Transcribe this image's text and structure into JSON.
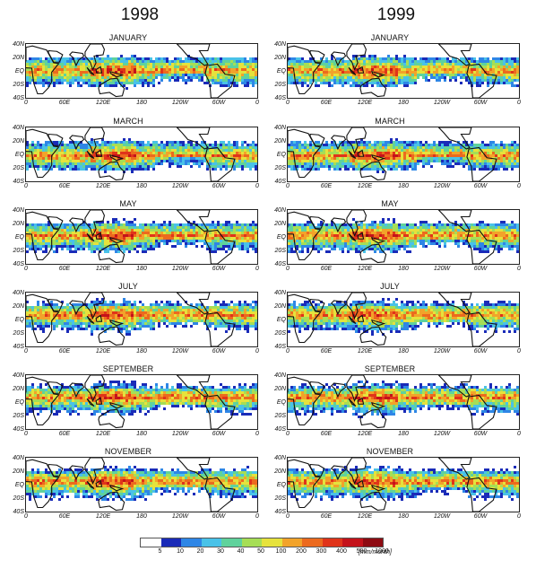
{
  "years": [
    "1998",
    "1999"
  ],
  "months": [
    "JANUARY",
    "MARCH",
    "MAY",
    "JULY",
    "SEPTEMBER",
    "NOVEMBER"
  ],
  "lat_labels": [
    "40N",
    "20N",
    "EQ",
    "20S",
    "40S"
  ],
  "lon_labels": [
    "0",
    "60E",
    "120E",
    "180",
    "120W",
    "60W",
    "0"
  ],
  "legend": {
    "values": [
      "5",
      "10",
      "20",
      "30",
      "40",
      "50",
      "100",
      "200",
      "300",
      "400",
      "500",
      "1000"
    ],
    "unit": "[mm/month]",
    "colors": [
      "#ffffff",
      "#1a2bb8",
      "#2e86e6",
      "#49c2e8",
      "#5fd29c",
      "#a6de55",
      "#e6e23c",
      "#f2a32a",
      "#ec6a1e",
      "#e0341a",
      "#c4121a",
      "#8e0b12"
    ]
  }
}
